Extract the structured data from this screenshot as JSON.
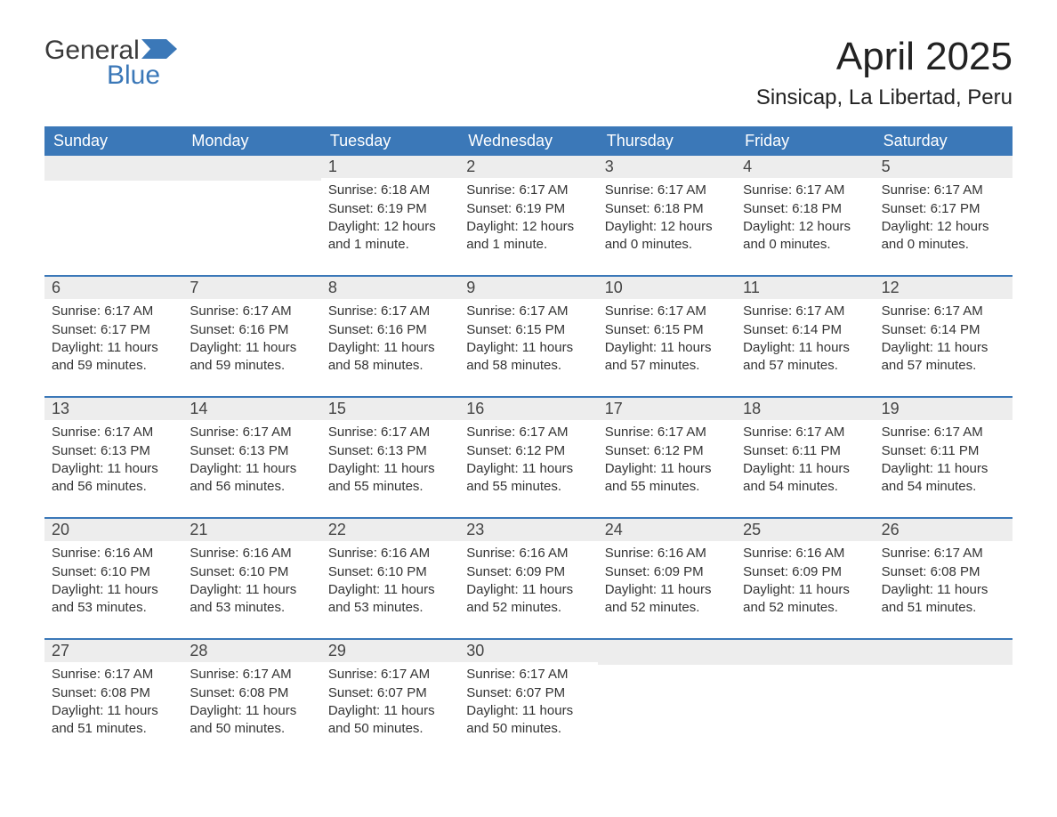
{
  "colors": {
    "header_bg": "#3b78b8",
    "header_text": "#ffffff",
    "daynum_bg": "#ededed",
    "body_text": "#333333",
    "week_divider": "#3b78b8",
    "page_bg": "#ffffff",
    "logo_blue": "#3b78b8",
    "logo_gray": "#3a3a3a"
  },
  "typography": {
    "font_family": "Arial, Helvetica, sans-serif",
    "month_title_pt": 44,
    "location_pt": 24,
    "header_cell_pt": 18,
    "daynum_pt": 18,
    "body_pt": 15
  },
  "logo": {
    "general": "General",
    "blue": "Blue"
  },
  "title": "April 2025",
  "location": "Sinsicap, La Libertad, Peru",
  "weekdays": [
    "Sunday",
    "Monday",
    "Tuesday",
    "Wednesday",
    "Thursday",
    "Friday",
    "Saturday"
  ],
  "calendar": {
    "type": "table",
    "columns": 7,
    "rows": 5,
    "weeks": [
      [
        {
          "blank": true
        },
        {
          "blank": true
        },
        {
          "num": "1",
          "sunrise": "Sunrise: 6:18 AM",
          "sunset": "Sunset: 6:19 PM",
          "daylight": "Daylight: 12 hours and 1 minute."
        },
        {
          "num": "2",
          "sunrise": "Sunrise: 6:17 AM",
          "sunset": "Sunset: 6:19 PM",
          "daylight": "Daylight: 12 hours and 1 minute."
        },
        {
          "num": "3",
          "sunrise": "Sunrise: 6:17 AM",
          "sunset": "Sunset: 6:18 PM",
          "daylight": "Daylight: 12 hours and 0 minutes."
        },
        {
          "num": "4",
          "sunrise": "Sunrise: 6:17 AM",
          "sunset": "Sunset: 6:18 PM",
          "daylight": "Daylight: 12 hours and 0 minutes."
        },
        {
          "num": "5",
          "sunrise": "Sunrise: 6:17 AM",
          "sunset": "Sunset: 6:17 PM",
          "daylight": "Daylight: 12 hours and 0 minutes."
        }
      ],
      [
        {
          "num": "6",
          "sunrise": "Sunrise: 6:17 AM",
          "sunset": "Sunset: 6:17 PM",
          "daylight": "Daylight: 11 hours and 59 minutes."
        },
        {
          "num": "7",
          "sunrise": "Sunrise: 6:17 AM",
          "sunset": "Sunset: 6:16 PM",
          "daylight": "Daylight: 11 hours and 59 minutes."
        },
        {
          "num": "8",
          "sunrise": "Sunrise: 6:17 AM",
          "sunset": "Sunset: 6:16 PM",
          "daylight": "Daylight: 11 hours and 58 minutes."
        },
        {
          "num": "9",
          "sunrise": "Sunrise: 6:17 AM",
          "sunset": "Sunset: 6:15 PM",
          "daylight": "Daylight: 11 hours and 58 minutes."
        },
        {
          "num": "10",
          "sunrise": "Sunrise: 6:17 AM",
          "sunset": "Sunset: 6:15 PM",
          "daylight": "Daylight: 11 hours and 57 minutes."
        },
        {
          "num": "11",
          "sunrise": "Sunrise: 6:17 AM",
          "sunset": "Sunset: 6:14 PM",
          "daylight": "Daylight: 11 hours and 57 minutes."
        },
        {
          "num": "12",
          "sunrise": "Sunrise: 6:17 AM",
          "sunset": "Sunset: 6:14 PM",
          "daylight": "Daylight: 11 hours and 57 minutes."
        }
      ],
      [
        {
          "num": "13",
          "sunrise": "Sunrise: 6:17 AM",
          "sunset": "Sunset: 6:13 PM",
          "daylight": "Daylight: 11 hours and 56 minutes."
        },
        {
          "num": "14",
          "sunrise": "Sunrise: 6:17 AM",
          "sunset": "Sunset: 6:13 PM",
          "daylight": "Daylight: 11 hours and 56 minutes."
        },
        {
          "num": "15",
          "sunrise": "Sunrise: 6:17 AM",
          "sunset": "Sunset: 6:13 PM",
          "daylight": "Daylight: 11 hours and 55 minutes."
        },
        {
          "num": "16",
          "sunrise": "Sunrise: 6:17 AM",
          "sunset": "Sunset: 6:12 PM",
          "daylight": "Daylight: 11 hours and 55 minutes."
        },
        {
          "num": "17",
          "sunrise": "Sunrise: 6:17 AM",
          "sunset": "Sunset: 6:12 PM",
          "daylight": "Daylight: 11 hours and 55 minutes."
        },
        {
          "num": "18",
          "sunrise": "Sunrise: 6:17 AM",
          "sunset": "Sunset: 6:11 PM",
          "daylight": "Daylight: 11 hours and 54 minutes."
        },
        {
          "num": "19",
          "sunrise": "Sunrise: 6:17 AM",
          "sunset": "Sunset: 6:11 PM",
          "daylight": "Daylight: 11 hours and 54 minutes."
        }
      ],
      [
        {
          "num": "20",
          "sunrise": "Sunrise: 6:16 AM",
          "sunset": "Sunset: 6:10 PM",
          "daylight": "Daylight: 11 hours and 53 minutes."
        },
        {
          "num": "21",
          "sunrise": "Sunrise: 6:16 AM",
          "sunset": "Sunset: 6:10 PM",
          "daylight": "Daylight: 11 hours and 53 minutes."
        },
        {
          "num": "22",
          "sunrise": "Sunrise: 6:16 AM",
          "sunset": "Sunset: 6:10 PM",
          "daylight": "Daylight: 11 hours and 53 minutes."
        },
        {
          "num": "23",
          "sunrise": "Sunrise: 6:16 AM",
          "sunset": "Sunset: 6:09 PM",
          "daylight": "Daylight: 11 hours and 52 minutes."
        },
        {
          "num": "24",
          "sunrise": "Sunrise: 6:16 AM",
          "sunset": "Sunset: 6:09 PM",
          "daylight": "Daylight: 11 hours and 52 minutes."
        },
        {
          "num": "25",
          "sunrise": "Sunrise: 6:16 AM",
          "sunset": "Sunset: 6:09 PM",
          "daylight": "Daylight: 11 hours and 52 minutes."
        },
        {
          "num": "26",
          "sunrise": "Sunrise: 6:17 AM",
          "sunset": "Sunset: 6:08 PM",
          "daylight": "Daylight: 11 hours and 51 minutes."
        }
      ],
      [
        {
          "num": "27",
          "sunrise": "Sunrise: 6:17 AM",
          "sunset": "Sunset: 6:08 PM",
          "daylight": "Daylight: 11 hours and 51 minutes."
        },
        {
          "num": "28",
          "sunrise": "Sunrise: 6:17 AM",
          "sunset": "Sunset: 6:08 PM",
          "daylight": "Daylight: 11 hours and 50 minutes."
        },
        {
          "num": "29",
          "sunrise": "Sunrise: 6:17 AM",
          "sunset": "Sunset: 6:07 PM",
          "daylight": "Daylight: 11 hours and 50 minutes."
        },
        {
          "num": "30",
          "sunrise": "Sunrise: 6:17 AM",
          "sunset": "Sunset: 6:07 PM",
          "daylight": "Daylight: 11 hours and 50 minutes."
        },
        {
          "blank": true
        },
        {
          "blank": true
        },
        {
          "blank": true
        }
      ]
    ]
  }
}
